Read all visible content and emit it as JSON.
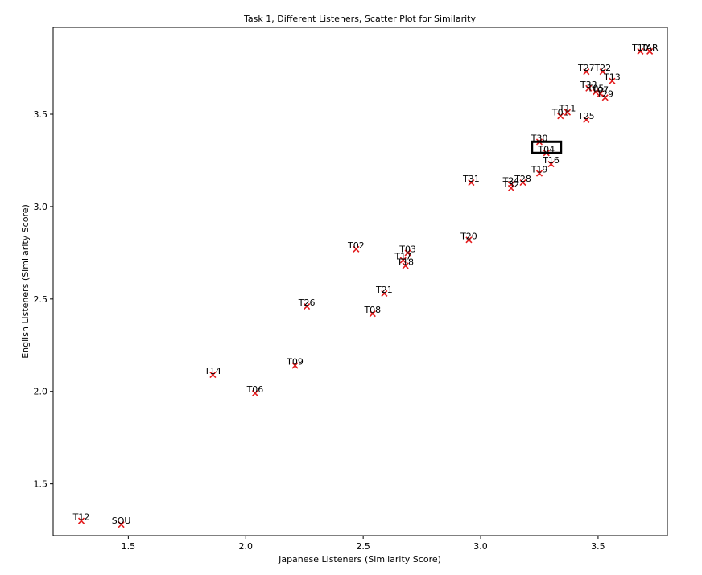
{
  "chart_data": {
    "type": "scatter",
    "title": "Task 1, Different Listeners, Scatter Plot for Similarity",
    "xlabel": "Japanese Listeners (Similarity Score)",
    "ylabel": "English Listeners (Similarity Score)",
    "xlim": [
      1.18,
      3.795
    ],
    "ylim": [
      1.22,
      3.97
    ],
    "xticks": [
      "1.5",
      "2.0",
      "2.5",
      "3.0",
      "3.5"
    ],
    "yticks": [
      "1.5",
      "2.0",
      "2.5",
      "3.0",
      "3.5"
    ],
    "grid": false,
    "marker": "x",
    "marker_color": "#e31a1c",
    "highlight_box": "T04",
    "points": [
      {
        "label": "T12",
        "x": 1.3,
        "y": 1.3
      },
      {
        "label": "SOU",
        "x": 1.47,
        "y": 1.28
      },
      {
        "label": "T14",
        "x": 1.86,
        "y": 2.09
      },
      {
        "label": "T06",
        "x": 2.04,
        "y": 1.99
      },
      {
        "label": "T09",
        "x": 2.21,
        "y": 2.14
      },
      {
        "label": "T26",
        "x": 2.26,
        "y": 2.46
      },
      {
        "label": "T02",
        "x": 2.47,
        "y": 2.77
      },
      {
        "label": "T08",
        "x": 2.54,
        "y": 2.42
      },
      {
        "label": "T21",
        "x": 2.59,
        "y": 2.53
      },
      {
        "label": "T03",
        "x": 2.69,
        "y": 2.75
      },
      {
        "label": "T17",
        "x": 2.67,
        "y": 2.71
      },
      {
        "label": "T18",
        "x": 2.68,
        "y": 2.68
      },
      {
        "label": "T31",
        "x": 2.96,
        "y": 3.13
      },
      {
        "label": "T20",
        "x": 2.95,
        "y": 2.82
      },
      {
        "label": "T24",
        "x": 3.13,
        "y": 3.12
      },
      {
        "label": "T32",
        "x": 3.13,
        "y": 3.1
      },
      {
        "label": "T28",
        "x": 3.18,
        "y": 3.13
      },
      {
        "label": "T19",
        "x": 3.25,
        "y": 3.18
      },
      {
        "label": "T30",
        "x": 3.25,
        "y": 3.35
      },
      {
        "label": "T04",
        "x": 3.28,
        "y": 3.29
      },
      {
        "label": "T16",
        "x": 3.3,
        "y": 3.23
      },
      {
        "label": "T01",
        "x": 3.34,
        "y": 3.49
      },
      {
        "label": "T11",
        "x": 3.37,
        "y": 3.51
      },
      {
        "label": "T25",
        "x": 3.45,
        "y": 3.47
      },
      {
        "label": "T27",
        "x": 3.45,
        "y": 3.73
      },
      {
        "label": "T33",
        "x": 3.46,
        "y": 3.64
      },
      {
        "label": "T05",
        "x": 3.49,
        "y": 3.62
      },
      {
        "label": "T07",
        "x": 3.51,
        "y": 3.61
      },
      {
        "label": "T29",
        "x": 3.53,
        "y": 3.59
      },
      {
        "label": "T22",
        "x": 3.52,
        "y": 3.73
      },
      {
        "label": "T13",
        "x": 3.56,
        "y": 3.68
      },
      {
        "label": "T10",
        "x": 3.68,
        "y": 3.84
      },
      {
        "label": "TAR",
        "x": 3.72,
        "y": 3.84
      }
    ]
  }
}
